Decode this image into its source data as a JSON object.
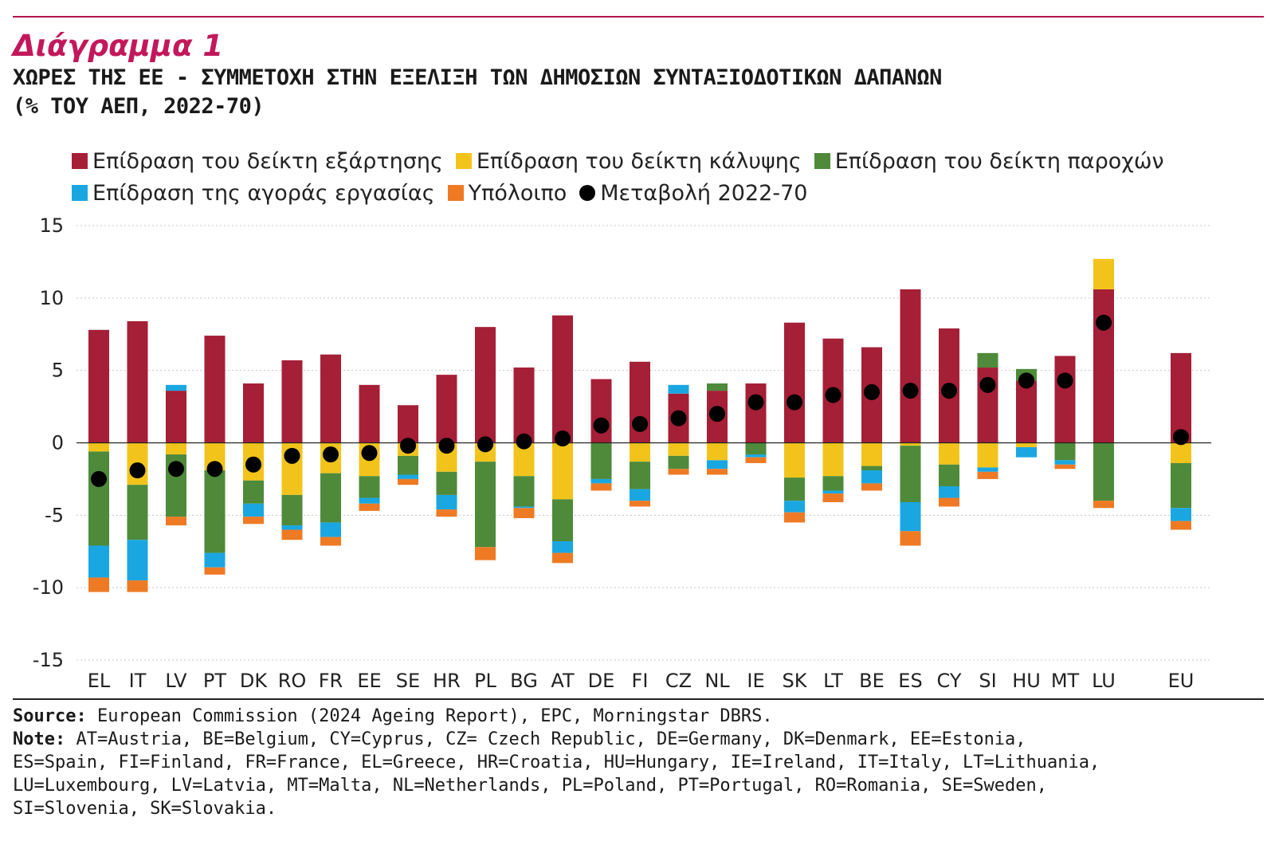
{
  "header": {
    "kicker": "Διάγραμμα 1",
    "title_line1": "ΧΩΡΕΣ ΤΗΣ ΕΕ - ΣΥΜΜΕΤΟΧΗ ΣΤΗΝ ΕΞΕΛΙΞΗ ΤΩΝ ΔΗΜΟΣΙΩΝ ΣΥΝΤΑΞΙΟΔΟΤΙΚΩΝ ΔΑΠΑΝΩΝ",
    "title_line2": "(% ΤΟΥ ΑΕΠ, 2022-70)"
  },
  "legend": [
    {
      "label": "Επίδραση του δείκτη εξάρτησης",
      "color": "#a51f37"
    },
    {
      "label": "Επίδραση του δείκτη κάλυψης",
      "color": "#f2c41b"
    },
    {
      "label": "Επίδραση του δείκτη παροχών",
      "color": "#4e8a3a"
    },
    {
      "label": "Επίδραση της αγοράς εργασίας",
      "color": "#1aa7e1"
    },
    {
      "label": "Υπόλοιπο",
      "color": "#ee7a24"
    },
    {
      "label": "Μεταβολή 2022-70",
      "color": "#000000"
    }
  ],
  "footer": {
    "source_label": "Source:",
    "source_text": "European Commission (2024 Ageing Report), EPC, Morningstar DBRS.",
    "note_label": "Note:",
    "note_line1": "AT=Austria, BE=Belgium, CY=Cyprus, CZ= Czech Republic, DE=Germany, DK=Denmark, EE=Estonia,",
    "note_line2": "ES=Spain, FI=Finland, FR=France, EL=Greece, HR=Croatia, HU=Hungary, IE=Ireland, IT=Italy, LT=Lithuania,",
    "note_line3": "LU=Luxembourg, LV=Latvia, MT=Malta, NL=Netherlands, PL=Poland, PT=Portugal, RO=Romania, SE=Sweden,",
    "note_line4": "SI=Slovenia, SK=Slovakia."
  },
  "chart_data": {
    "type": "bar",
    "stacked": true,
    "title": "ΧΩΡΕΣ ΤΗΣ ΕΕ - ΣΥΜΜΕΤΟΧΗ ΣΤΗΝ ΕΞΕΛΙΞΗ ΤΩΝ ΔΗΜΟΣΙΩΝ ΣΥΝΤΑΞΙΟΔΟΤΙΚΩΝ ΔΑΠΑΝΩΝ (% ΤΟΥ ΑΕΠ, 2022-70)",
    "xlabel": "",
    "ylabel": "",
    "ylim": [
      -15,
      15
    ],
    "yticks": [
      15,
      10,
      5,
      0,
      -5,
      -10,
      -15
    ],
    "grid": true,
    "legend_position": "top",
    "categories": [
      "EL",
      "IT",
      "LV",
      "PT",
      "DK",
      "RO",
      "FR",
      "EE",
      "SE",
      "HR",
      "PL",
      "BG",
      "AT",
      "DE",
      "FI",
      "CZ",
      "NL",
      "IE",
      "SK",
      "LT",
      "BE",
      "ES",
      "CY",
      "SI",
      "HU",
      "MT",
      "LU",
      "",
      "EU"
    ],
    "series": [
      {
        "name": "Επίδραση του δείκτη εξάρτησης",
        "color": "#a51f37",
        "values": [
          7.8,
          8.4,
          3.6,
          7.4,
          4.1,
          5.7,
          6.1,
          4.0,
          2.6,
          4.7,
          8.0,
          5.2,
          8.8,
          4.4,
          5.6,
          3.4,
          3.6,
          4.1,
          8.3,
          7.2,
          6.6,
          10.6,
          7.9,
          5.2,
          4.3,
          6.0,
          10.6,
          null,
          6.2
        ]
      },
      {
        "name": "Επίδραση του δείκτη κάλυψης",
        "color": "#f2c41b",
        "values": [
          -0.6,
          -2.9,
          -0.8,
          -1.9,
          -2.6,
          -3.6,
          -2.1,
          -2.3,
          -0.9,
          -2.0,
          -1.3,
          -2.3,
          -3.9,
          0.0,
          -1.3,
          -0.9,
          -1.2,
          0.0,
          -2.4,
          -2.3,
          -1.6,
          -0.2,
          -1.5,
          -1.7,
          -0.3,
          0.0,
          2.1,
          null,
          -1.4
        ]
      },
      {
        "name": "Επίδραση του δείκτη παροχών",
        "color": "#4e8a3a",
        "values": [
          -6.5,
          -3.8,
          -4.3,
          -5.7,
          -1.6,
          -2.1,
          -3.4,
          -1.5,
          -1.3,
          -1.6,
          -5.9,
          -2.1,
          -2.9,
          -2.5,
          -1.9,
          -0.9,
          0.5,
          -0.8,
          -1.6,
          -1.0,
          -0.3,
          -3.9,
          -1.5,
          1.0,
          0.8,
          -1.2,
          -4.0,
          null,
          -3.1
        ]
      },
      {
        "name": "Επίδραση της αγοράς εργασίας",
        "color": "#1aa7e1",
        "values": [
          -2.2,
          -2.8,
          0.4,
          -1.0,
          -0.9,
          -0.3,
          -1.0,
          -0.4,
          -0.3,
          -1.0,
          0.0,
          -0.1,
          -0.8,
          -0.3,
          -0.8,
          0.6,
          -0.6,
          -0.2,
          -0.8,
          -0.2,
          -0.9,
          -2.0,
          -0.8,
          -0.3,
          -0.7,
          -0.3,
          0.0,
          null,
          -0.9
        ]
      },
      {
        "name": "Υπόλοιπο",
        "color": "#ee7a24",
        "values": [
          -1.0,
          -0.8,
          -0.6,
          -0.5,
          -0.5,
          -0.7,
          -0.6,
          -0.5,
          -0.4,
          -0.5,
          -0.9,
          -0.7,
          -0.7,
          -0.5,
          -0.4,
          -0.4,
          -0.4,
          -0.4,
          -0.7,
          -0.6,
          -0.5,
          -1.0,
          -0.6,
          -0.5,
          0.0,
          -0.3,
          -0.5,
          null,
          -0.6
        ]
      }
    ],
    "line_markers": {
      "name": "Μεταβολή 2022-70",
      "color": "#000000",
      "values": [
        -2.5,
        -1.9,
        -1.8,
        -1.8,
        -1.5,
        -0.9,
        -0.8,
        -0.7,
        -0.2,
        -0.2,
        -0.1,
        0.1,
        0.3,
        1.2,
        1.3,
        1.7,
        2.0,
        2.8,
        2.8,
        3.3,
        3.5,
        3.6,
        3.6,
        4.0,
        4.3,
        4.3,
        8.3,
        null,
        0.4
      ]
    }
  }
}
